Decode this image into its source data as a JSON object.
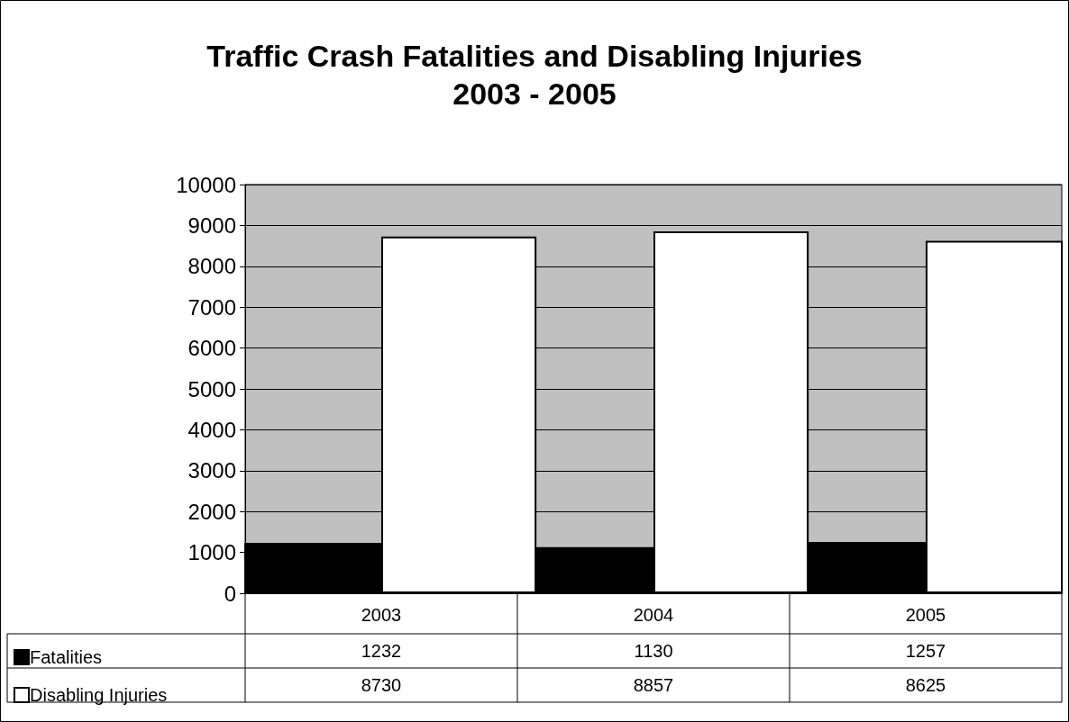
{
  "chart_data": {
    "type": "bar",
    "title": "Traffic Crash Fatalities and Disabling Injuries",
    "subtitle": "2003 - 2005",
    "categories": [
      "2003",
      "2004",
      "2005"
    ],
    "series": [
      {
        "name": "Fatalities",
        "color": "#000000",
        "values": [
          1232,
          1130,
          1257
        ]
      },
      {
        "name": "Disabling Injuries",
        "color": "#ffffff",
        "values": [
          8730,
          8857,
          8625
        ]
      }
    ],
    "ylim": [
      0,
      10000
    ],
    "yticks": [
      0,
      1000,
      2000,
      3000,
      4000,
      5000,
      6000,
      7000,
      8000,
      9000,
      10000
    ],
    "grid": "y",
    "legend": "bottom left",
    "data_labels": true
  }
}
